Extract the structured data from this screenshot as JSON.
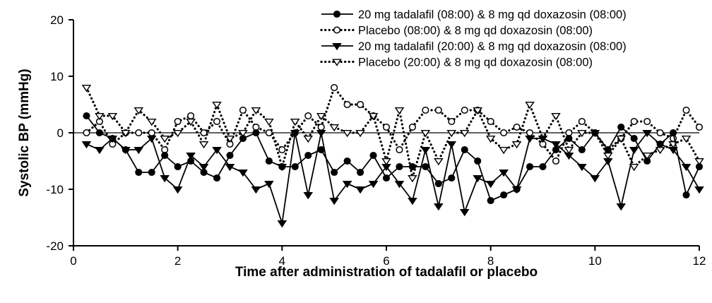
{
  "chart_data": {
    "type": "line",
    "title": "",
    "xlabel": "Time after administration of tadalafil or placebo",
    "ylabel": "Systolic BP (mmHg)",
    "xlim": [
      0,
      12
    ],
    "ylim": [
      -20,
      20
    ],
    "xticks": [
      "0",
      "2",
      "4",
      "6",
      "8",
      "10",
      "12"
    ],
    "yticks": [
      "-20",
      "-10",
      "0",
      "10",
      "20"
    ],
    "xtick_values": [
      0,
      2,
      4,
      6,
      8,
      10,
      12
    ],
    "ytick_values": [
      -20,
      -10,
      0,
      10,
      20
    ],
    "legend_position": "top-right",
    "reference_line": 0,
    "x": [
      0.25,
      0.5,
      0.75,
      1,
      1.25,
      1.5,
      1.75,
      2,
      2.25,
      2.5,
      2.75,
      3,
      3.25,
      3.5,
      3.75,
      4,
      4.25,
      4.5,
      4.75,
      5,
      5.25,
      5.5,
      5.75,
      6,
      6.25,
      6.5,
      6.75,
      7,
      7.25,
      7.5,
      7.75,
      8,
      8.25,
      8.5,
      8.75,
      9,
      9.25,
      9.5,
      9.75,
      10,
      10.25,
      10.5,
      10.75,
      11,
      11.25,
      11.5,
      11.75,
      12
    ],
    "series": [
      {
        "name": "20 mg tadalafil (08:00) & 8 mg qd doxazosin (08:00)",
        "marker": "filled-circle",
        "line": "solid",
        "values": [
          3,
          0,
          -1,
          -3,
          -7,
          -7,
          -4,
          -6,
          -5,
          -7,
          -8,
          -4,
          -1,
          0,
          -5,
          -6,
          -6,
          -4,
          -3,
          -7,
          -5,
          -7,
          -4,
          -8,
          -6,
          -6,
          -6,
          -9,
          -8,
          -3,
          -5,
          -12,
          -11,
          -10,
          -6,
          -6,
          -3,
          -1,
          -3,
          0,
          -3,
          1,
          -1,
          -5,
          -2,
          0,
          -11,
          -6
        ]
      },
      {
        "name": "Placebo (08:00) & 8 mg qd doxazosin (08:00)",
        "marker": "open-circle",
        "line": "dotted",
        "values": [
          0,
          2,
          -2,
          0,
          0,
          0,
          -3,
          2,
          3,
          0,
          2,
          -2,
          4,
          1,
          0,
          -3,
          0,
          3,
          1,
          8,
          5,
          5,
          3,
          1,
          -3,
          1,
          4,
          4,
          2,
          4,
          4,
          2,
          0,
          1,
          0,
          -2,
          -5,
          0,
          2,
          0,
          -3,
          -1,
          2,
          2,
          0,
          -1,
          4,
          1
        ]
      },
      {
        "name": "20 mg tadalafil (20:00) & 8 mg qd doxazosin (08:00)",
        "marker": "filled-triangle-down",
        "line": "solid",
        "values": [
          -2,
          -3,
          -1,
          -3,
          -3,
          -1,
          -8,
          -10,
          -4,
          -6,
          -3,
          -6,
          -7,
          -10,
          -9,
          -16,
          0,
          -11,
          0,
          -12,
          -9,
          -10,
          -9,
          -6,
          -9,
          -12,
          -3,
          -13,
          -2,
          -14,
          -8,
          -9,
          -7,
          -10,
          -1,
          -1,
          -2,
          -4,
          -6,
          -8,
          -5,
          -13,
          -3,
          0,
          -2,
          -3,
          -6,
          -10
        ]
      },
      {
        "name": "Placebo (20:00) & 8 mg qd doxazosin (08:00)",
        "marker": "open-triangle-down",
        "line": "dotted",
        "values": [
          8,
          3,
          3,
          0,
          4,
          2,
          -1,
          0,
          2,
          -2,
          5,
          -1,
          0,
          4,
          2,
          -6,
          2,
          -1,
          3,
          1,
          0,
          0,
          3,
          -5,
          4,
          -8,
          0,
          -5,
          0,
          0,
          4,
          -1,
          -3,
          -2,
          5,
          -1,
          3,
          -3,
          0,
          0,
          -4,
          -1,
          -6,
          -4,
          -3,
          -2,
          -1,
          -5
        ]
      }
    ]
  }
}
